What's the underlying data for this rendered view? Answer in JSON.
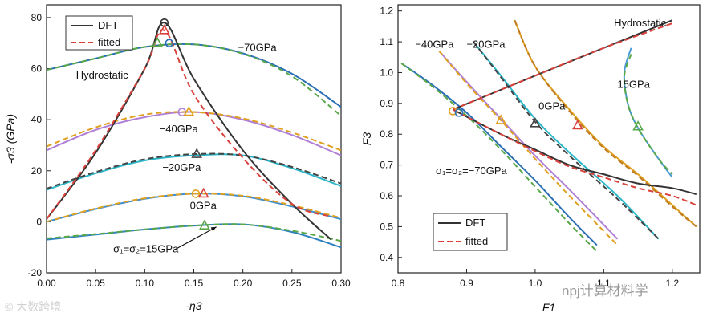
{
  "chart_data": [
    {
      "type": "line",
      "xlabel": "-η3",
      "ylabel": "-σ3 (GPa)",
      "xlim": [
        0,
        0.3
      ],
      "ylim": [
        -20,
        85
      ],
      "xticks": [
        0.0,
        0.05,
        0.1,
        0.15,
        0.2,
        0.25,
        0.3
      ],
      "xtick_labels": [
        "0.00",
        "0.05",
        "0.10",
        "0.15",
        "0.20",
        "0.25",
        "0.30"
      ],
      "yticks": [
        -20,
        0,
        20,
        40,
        60,
        80
      ],
      "ytick_labels": [
        "-20",
        "0",
        "20",
        "40",
        "60",
        "80"
      ],
      "legend": {
        "position": "top-left",
        "entries": [
          {
            "label": "DFT",
            "color": "#333333",
            "dash": "solid"
          },
          {
            "label": "fitted",
            "color": "#d9413b",
            "dash": "dashed"
          }
        ]
      },
      "annotations": [
        {
          "text": "−70GPa",
          "x": 0.195,
          "y": 67
        },
        {
          "text": "Hydrostatic",
          "x": 0.03,
          "y": 56
        },
        {
          "text": "−40GPa",
          "x": 0.115,
          "y": 35
        },
        {
          "text": "−20GPa",
          "x": 0.118,
          "y": 20
        },
        {
          "text": "0GPa",
          "x": 0.146,
          "y": 5
        },
        {
          "text": "σ₁=σ₂=15GPa",
          "x": 0.068,
          "y": -12
        }
      ],
      "series": [
        {
          "name": "-70GPa",
          "color": "#2a6fb5",
          "x": [
            0.0,
            0.05,
            0.1,
            0.15,
            0.2,
            0.25,
            0.3
          ],
          "y": [
            59.5,
            64,
            68.5,
            69.5,
            66,
            58,
            45
          ],
          "fit": [
            59.5,
            64,
            68.5,
            69.5,
            65.8,
            57,
            41.5
          ],
          "fit_color": "#5aa84a"
        },
        {
          "name": "-40GPa",
          "color": "#b07fd6",
          "x": [
            0.0,
            0.05,
            0.1,
            0.15,
            0.2,
            0.25,
            0.3
          ],
          "y": [
            28,
            36,
            41,
            43,
            40,
            34,
            26
          ],
          "fit": [
            29.5,
            37,
            42,
            43,
            40.5,
            35,
            28
          ],
          "fit_color": "#e0a020"
        },
        {
          "name": "-20GPa",
          "color": "#2ab7c9",
          "x": [
            0.0,
            0.05,
            0.1,
            0.15,
            0.2,
            0.25,
            0.3
          ],
          "y": [
            12.5,
            19,
            24,
            26,
            26,
            21,
            14
          ],
          "fit": [
            13,
            19.5,
            24.5,
            26.5,
            26,
            21.5,
            15
          ],
          "fit_color": "#444444"
        },
        {
          "name": "0GPa",
          "color": "#3f8fcf",
          "x": [
            0.0,
            0.05,
            0.1,
            0.15,
            0.2,
            0.25,
            0.3
          ],
          "y": [
            0,
            5,
            9,
            11,
            10,
            6,
            1
          ],
          "fit": [
            0,
            5.2,
            9.2,
            11,
            10.2,
            6.5,
            1.5
          ],
          "fit_color": "#e0a020"
        },
        {
          "name": "15GPa",
          "color": "#2f82c0",
          "x": [
            0.0,
            0.05,
            0.1,
            0.15,
            0.2,
            0.25,
            0.3
          ],
          "y": [
            -7,
            -5,
            -3,
            -1.5,
            -1,
            -4,
            -10
          ],
          "fit": [
            -6.5,
            -4.8,
            -3,
            -1.5,
            -1,
            -3.5,
            -7.5
          ],
          "fit_color": "#5aa84a"
        },
        {
          "name": "Hydrostatic",
          "color": "#333333",
          "x": [
            0.0,
            0.05,
            0.1,
            0.12,
            0.15,
            0.2,
            0.25,
            0.29
          ],
          "y": [
            1,
            27,
            60,
            78,
            56,
            28,
            7,
            -7
          ],
          "fit": [
            1,
            28,
            60,
            75,
            50,
            25,
            7,
            2
          ],
          "fit_color": "#d9413b"
        }
      ],
      "markers": [
        {
          "shape": "circle",
          "color": "#333333",
          "x": 0.12,
          "y": 78
        },
        {
          "shape": "triangle",
          "color": "#d9413b",
          "x": 0.12,
          "y": 75
        },
        {
          "shape": "triangle",
          "color": "#5aa84a",
          "x": 0.113,
          "y": 70
        },
        {
          "shape": "circle",
          "color": "#2a6fb5",
          "x": 0.125,
          "y": 70
        },
        {
          "shape": "circle",
          "color": "#b07fd6",
          "x": 0.138,
          "y": 43
        },
        {
          "shape": "triangle",
          "color": "#e0a020",
          "x": 0.145,
          "y": 43
        },
        {
          "shape": "triangle",
          "color": "#444444",
          "x": 0.153,
          "y": 26.5
        },
        {
          "shape": "circle",
          "color": "#e0a020",
          "x": 0.152,
          "y": 11
        },
        {
          "shape": "triangle",
          "color": "#d9413b",
          "x": 0.16,
          "y": 11
        },
        {
          "shape": "triangle",
          "color": "#5aa84a",
          "x": 0.161,
          "y": -1.5
        }
      ],
      "arrow": {
        "from": [
          0.13,
          -11
        ],
        "to": [
          0.173,
          -2
        ]
      }
    },
    {
      "type": "line",
      "xlabel": "F1",
      "ylabel": "F3",
      "xlim": [
        0.8,
        1.24
      ],
      "ylim": [
        0.35,
        1.22
      ],
      "xticks": [
        0.8,
        0.9,
        1.0,
        1.1,
        1.2
      ],
      "xtick_labels": [
        "0.8",
        "0.9",
        "1.0",
        "1.1",
        "1.2"
      ],
      "yticks": [
        0.4,
        0.5,
        0.6,
        0.7,
        0.8,
        0.9,
        1.0,
        1.1,
        1.2
      ],
      "ytick_labels": [
        "0.4",
        "0.5",
        "0.6",
        "0.7",
        "0.8",
        "0.9",
        "1.0",
        "1.1",
        "1.2"
      ],
      "legend": {
        "position": "bottom-center",
        "entries": [
          {
            "label": "DFT",
            "color": "#333333",
            "dash": "solid"
          },
          {
            "label": "fitted",
            "color": "#d9413b",
            "dash": "dashed"
          }
        ]
      },
      "annotations": [
        {
          "text": "Hydrostatic",
          "x": 1.115,
          "y": 1.15
        },
        {
          "text": "−40GPa",
          "x": 0.825,
          "y": 1.08
        },
        {
          "text": "−20GPa",
          "x": 0.9,
          "y": 1.08
        },
        {
          "text": "0GPa",
          "x": 1.005,
          "y": 0.88
        },
        {
          "text": "15GPa",
          "x": 1.12,
          "y": 0.95
        },
        {
          "text": "σ₁=σ₂=−70GPa",
          "x": 0.855,
          "y": 0.67
        }
      ],
      "series": [
        {
          "name": "-70GPa",
          "color": "#2a6fb5",
          "x": [
            0.805,
            0.85,
            0.9,
            0.95,
            1.0,
            1.05,
            1.09
          ],
          "y": [
            1.03,
            0.96,
            0.87,
            0.76,
            0.65,
            0.53,
            0.44
          ],
          "fit": [
            1.03,
            0.955,
            0.86,
            0.75,
            0.63,
            0.51,
            0.42
          ],
          "fit_color": "#5aa84a"
        },
        {
          "name": "-40GPa",
          "color": "#b07fd6",
          "x": [
            0.86,
            0.9,
            0.95,
            1.0,
            1.05,
            1.12
          ],
          "y": [
            1.07,
            0.97,
            0.85,
            0.73,
            0.62,
            0.46
          ],
          "fit": [
            1.07,
            0.965,
            0.845,
            0.72,
            0.6,
            0.44
          ],
          "fit_color": "#e0a020"
        },
        {
          "name": "-20GPa",
          "color": "#2ab7c9",
          "x": [
            0.91,
            0.95,
            1.0,
            1.05,
            1.12,
            1.18
          ],
          "y": [
            1.1,
            0.99,
            0.85,
            0.74,
            0.6,
            0.46
          ],
          "fit": [
            1.1,
            0.985,
            0.84,
            0.73,
            0.59,
            0.46
          ],
          "fit_color": "#444444"
        },
        {
          "name": "0GPa",
          "color": "#e0a020",
          "x": [
            0.97,
            1.0,
            1.05,
            1.1,
            1.15,
            1.2,
            1.235
          ],
          "y": [
            1.17,
            1.02,
            0.88,
            0.76,
            0.67,
            0.57,
            0.5
          ],
          "fit": [
            1.17,
            1.02,
            0.875,
            0.755,
            0.665,
            0.565,
            0.5
          ],
          "fit_color": "#c07a20"
        },
        {
          "name": "15GPa",
          "color": "#4a9ad6",
          "x": [
            1.14,
            1.13,
            1.135,
            1.15,
            1.18,
            1.2
          ],
          "y": [
            1.08,
            1.0,
            0.9,
            0.82,
            0.72,
            0.66
          ],
          "fit": [
            1.06,
            0.99,
            0.9,
            0.82,
            0.72,
            0.67
          ],
          "fit_color": "#5aa84a"
        },
        {
          "name": "Hydrostatic",
          "color": "#333333",
          "x": [
            0.88,
            1.0,
            1.1,
            1.2
          ],
          "y": [
            0.88,
            0.99,
            1.08,
            1.17
          ],
          "fit": [
            0.88,
            0.99,
            1.08,
            1.16
          ],
          "fit_color": "#d9413b"
        },
        {
          "name": "70GPa-tail",
          "color": "#333333",
          "x": [
            0.88,
            0.95,
            1.0,
            1.05,
            1.1,
            1.15,
            1.2,
            1.235
          ],
          "y": [
            0.88,
            0.8,
            0.75,
            0.7,
            0.67,
            0.64,
            0.625,
            0.605
          ],
          "fit": [
            0.88,
            0.8,
            0.745,
            0.695,
            0.66,
            0.625,
            0.6,
            0.57
          ],
          "fit_color": "#d9413b"
        }
      ],
      "markers": [
        {
          "shape": "circle",
          "color": "#e0a020",
          "x": 0.88,
          "y": 0.875
        },
        {
          "shape": "circle",
          "color": "#2a6fb5",
          "x": 0.889,
          "y": 0.87
        },
        {
          "shape": "triangle",
          "color": "#e0a020",
          "x": 0.95,
          "y": 0.845
        },
        {
          "shape": "triangle",
          "color": "#444444",
          "x": 1.0,
          "y": 0.835
        },
        {
          "shape": "triangle",
          "color": "#d9413b",
          "x": 1.062,
          "y": 0.828
        },
        {
          "shape": "triangle",
          "color": "#5aa84a",
          "x": 1.15,
          "y": 0.825
        }
      ]
    }
  ],
  "watermark": {
    "left": "© 大数跨境",
    "right": "npj计算材料学"
  }
}
